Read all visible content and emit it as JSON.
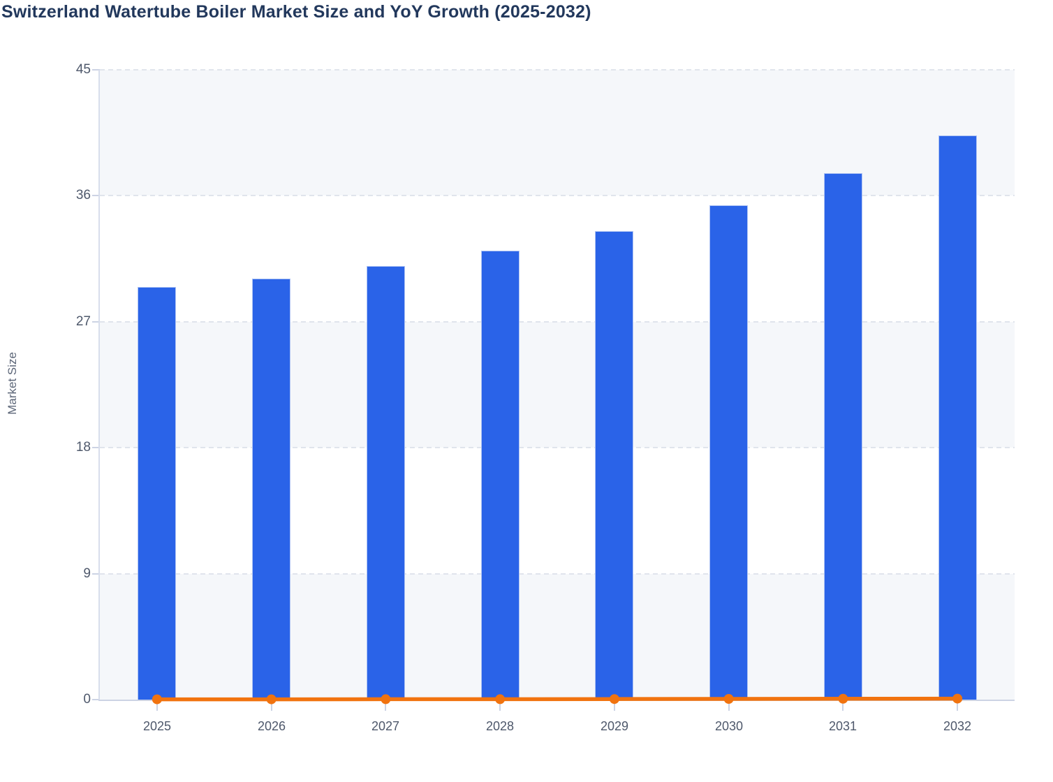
{
  "header": {
    "title": "Switzerland Watertube Boiler Market Size and YoY Growth (2025-2032)"
  },
  "chart_data": {
    "type": "bar",
    "title": "Switzerland Watertube Boiler Market Size and YoY Growth (2025-2032)",
    "categories": [
      "2025",
      "2026",
      "2027",
      "2028",
      "2029",
      "2030",
      "2031",
      "2032"
    ],
    "series": [
      {
        "name": "Market Size",
        "type": "bar",
        "values": [
          29.5,
          30.1,
          31.0,
          32.1,
          33.5,
          35.3,
          37.6,
          40.3
        ]
      },
      {
        "name": "YoY Growth",
        "type": "line",
        "values": [
          0.02,
          0.02,
          0.03,
          0.03,
          0.04,
          0.05,
          0.06,
          0.07
        ],
        "note": "line renders at approximately 0 on the shared Market Size axis"
      }
    ],
    "xlabel": "",
    "ylabel": "Market Size",
    "ylim": [
      0,
      45
    ],
    "y_ticks": [
      0,
      9,
      18,
      27,
      36,
      45
    ],
    "grid": "horizontal-dashed",
    "legend": "none",
    "plot_bands": "alternating horizontal stripes every 9 units, gray from top",
    "colors": {
      "bar": "#2a63e8",
      "bar_border": "#aec3f3",
      "line": "#f1730f",
      "band": "#f5f7fa",
      "grid": "#e0e4ec",
      "axis": "#ccd3e4",
      "tick_label": "#4e586b",
      "axis_title": "#5b6577",
      "title": "#22385c",
      "page_bg": "#ffffff"
    }
  }
}
